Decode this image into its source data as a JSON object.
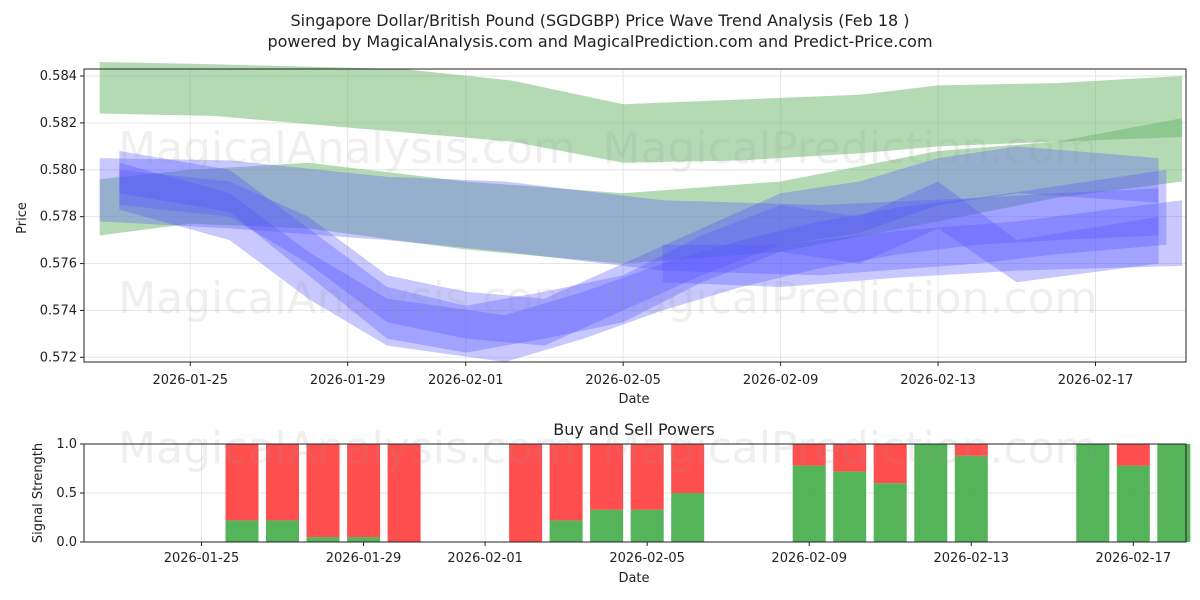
{
  "title": "Singapore Dollar/British Pound (SGDGBP) Price Wave Trend Analysis (Feb 18 )",
  "subtitle": "powered by MagicalAnalysis.com and MagicalPrediction.com and Predict-Price.com",
  "watermarks": [
    "MagicalAnalysis.com",
    "MagicalPrediction.com"
  ],
  "colors": {
    "green": "#4caf50",
    "red": "#ff4444",
    "blue": "#5555ff",
    "green_band": "#6ab56a"
  },
  "chart_data": [
    {
      "type": "area",
      "name": "price-wave",
      "xlabel": "Date",
      "ylabel": "Price",
      "xlim": [
        "2026-01-22.3",
        "2026-02-19.3"
      ],
      "ylim": [
        0.5718,
        0.5843
      ],
      "x_ticks": [
        "2026-01-25",
        "2026-01-29",
        "2026-02-01",
        "2026-02-05",
        "2026-02-09",
        "2026-02-13",
        "2026-02-17"
      ],
      "y_ticks": [
        "0.572",
        "0.574",
        "0.576",
        "0.578",
        "0.580",
        "0.582",
        "0.584"
      ],
      "series": [
        {
          "name": "green-upper-band",
          "color": "green",
          "x": [
            "01-22.7",
            "01-25.6",
            "01-30.4",
            "02-02.2",
            "02-05",
            "02-08",
            "02-11",
            "02-13",
            "02-16",
            "02-19.2"
          ],
          "upper": [
            0.5846,
            0.5845,
            0.5843,
            0.5838,
            0.5828,
            0.583,
            0.5832,
            0.5836,
            0.5837,
            0.584
          ],
          "lower": [
            0.5824,
            0.5823,
            0.5816,
            0.5812,
            0.5803,
            0.5804,
            0.5807,
            0.581,
            0.5812,
            0.5814
          ]
        },
        {
          "name": "green-lower-band",
          "color": "green",
          "x": [
            "01-22.7",
            "01-25",
            "01-28",
            "02-01",
            "02-05",
            "02-09",
            "02-13",
            "02-16",
            "02-19.2"
          ],
          "upper": [
            0.5796,
            0.58,
            0.5803,
            0.5795,
            0.579,
            0.5795,
            0.5808,
            0.5812,
            0.5822
          ],
          "lower": [
            0.5772,
            0.5777,
            0.5775,
            0.5766,
            0.576,
            0.5765,
            0.5778,
            0.5788,
            0.5795
          ]
        },
        {
          "name": "blue-main-band",
          "color": "blue",
          "x": [
            "01-22.7",
            "01-26",
            "01-30",
            "02-02",
            "02-06",
            "02-10",
            "02-14",
            "02-16",
            "02-18.8"
          ],
          "upper": [
            0.5805,
            0.5804,
            0.5797,
            0.5795,
            0.5787,
            0.5785,
            0.5788,
            0.5793,
            0.58
          ],
          "lower": [
            0.5778,
            0.5775,
            0.577,
            0.5765,
            0.5757,
            0.5755,
            0.576,
            0.5764,
            0.5768
          ]
        },
        {
          "name": "blue-dip-band-1",
          "color": "blue",
          "x": [
            "01-23.2",
            "01-26",
            "01-28",
            "01-30",
            "02-01",
            "02-03",
            "02-05",
            "02-07",
            "02-09",
            "02-11",
            "02-13",
            "02-15",
            "02-18.6"
          ],
          "upper": [
            0.58,
            0.5795,
            0.578,
            0.5755,
            0.5748,
            0.5745,
            0.576,
            0.5775,
            0.579,
            0.5795,
            0.5805,
            0.581,
            0.5805
          ],
          "lower": [
            0.5785,
            0.578,
            0.576,
            0.5735,
            0.5728,
            0.5725,
            0.574,
            0.5755,
            0.5768,
            0.5773,
            0.5785,
            0.579,
            0.5786
          ]
        },
        {
          "name": "blue-dip-band-2",
          "color": "blue",
          "x": [
            "01-23.2",
            "01-26",
            "01-28",
            "01-30",
            "02-01",
            "02-03",
            "02-05",
            "02-07",
            "02-09",
            "02-11",
            "02-13",
            "02-15",
            "02-18.6"
          ],
          "upper": [
            0.5808,
            0.58,
            0.5775,
            0.575,
            0.5742,
            0.5748,
            0.5755,
            0.5772,
            0.5785,
            0.578,
            0.5795,
            0.577,
            0.578
          ],
          "lower": [
            0.579,
            0.5782,
            0.5755,
            0.5728,
            0.5722,
            0.5728,
            0.5735,
            0.5752,
            0.5765,
            0.576,
            0.5775,
            0.5752,
            0.576
          ]
        },
        {
          "name": "blue-dip-band-3",
          "color": "blue",
          "x": [
            "01-23.2",
            "01-26",
            "01-28",
            "01-30",
            "02-02",
            "02-04",
            "02-06",
            "02-08",
            "02-10",
            "02-12",
            "02-14",
            "02-16",
            "02-18.6"
          ],
          "upper": [
            0.5803,
            0.579,
            0.5765,
            0.5745,
            0.5738,
            0.5748,
            0.576,
            0.577,
            0.5778,
            0.5784,
            0.5788,
            0.579,
            0.5792
          ],
          "lower": [
            0.5783,
            0.577,
            0.5745,
            0.5725,
            0.5718,
            0.5728,
            0.574,
            0.575,
            0.5758,
            0.5764,
            0.5768,
            0.577,
            0.5772
          ]
        },
        {
          "name": "blue-right-band",
          "color": "blue",
          "x": [
            "02-06",
            "02-09",
            "02-12",
            "02-15",
            "02-19.2"
          ],
          "upper": [
            0.5768,
            0.5768,
            0.5774,
            0.5778,
            0.5787
          ],
          "lower": [
            0.5752,
            0.575,
            0.5754,
            0.5757,
            0.5759
          ]
        }
      ]
    },
    {
      "type": "bar",
      "name": "buy-sell-powers",
      "title": "Buy and Sell Powers",
      "xlabel": "Date",
      "ylabel": "Signal Strength",
      "ylim": [
        0,
        1.0
      ],
      "y_ticks": [
        "0.0",
        "0.5",
        "1.0"
      ],
      "x_ticks": [
        "2026-01-25",
        "2026-01-29",
        "2026-02-01",
        "2026-02-05",
        "2026-02-09",
        "2026-02-13",
        "2026-02-17"
      ],
      "dates": [
        "01-26",
        "01-27",
        "01-28",
        "01-29",
        "01-30",
        "02-02",
        "02-03",
        "02-04",
        "02-05",
        "02-06",
        "02-09",
        "02-10",
        "02-11",
        "02-12",
        "02-13",
        "02-16",
        "02-17",
        "02-18"
      ],
      "series": [
        {
          "name": "Buy",
          "color": "green",
          "values": [
            0.22,
            0.22,
            0.05,
            0.05,
            0.0,
            0.0,
            0.22,
            0.33,
            0.33,
            0.5,
            0.78,
            0.72,
            0.6,
            1.0,
            0.88,
            1.0,
            0.78,
            1.0
          ]
        },
        {
          "name": "Sell",
          "color": "red",
          "values": [
            0.78,
            0.78,
            0.95,
            0.95,
            1.0,
            1.0,
            0.78,
            0.67,
            0.67,
            0.5,
            0.22,
            0.28,
            0.4,
            0.0,
            0.12,
            0.0,
            0.22,
            0.0
          ]
        }
      ]
    }
  ]
}
